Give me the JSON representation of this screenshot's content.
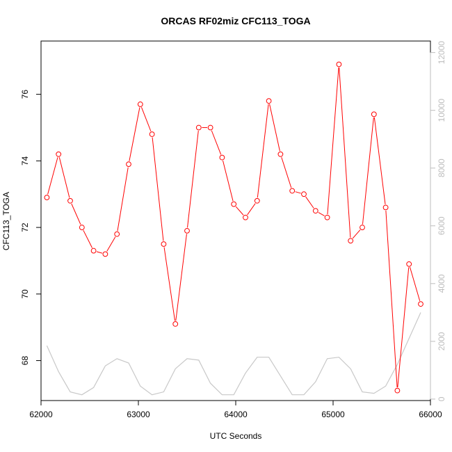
{
  "chart_data": {
    "type": "line",
    "title": "ORCAS RF02miz CFC113_TOGA",
    "xlabel": "UTC Seconds",
    "ylabel": "CFC113_TOGA",
    "xlim": [
      62000,
      66000
    ],
    "ylim": [
      66.8,
      77.6
    ],
    "y2lim": [
      -50,
      12400
    ],
    "x_ticks": [
      62000,
      63000,
      64000,
      65000,
      66000
    ],
    "y_ticks": [
      68,
      70,
      72,
      74,
      76
    ],
    "y2_ticks": [
      0,
      2000,
      4000,
      6000,
      8000,
      10000,
      12000
    ],
    "grid": false,
    "series": [
      {
        "axis": "left",
        "color": "#ff0000",
        "marker": "open-circle",
        "x": [
          62060,
          62180,
          62300,
          62420,
          62540,
          62660,
          62780,
          62900,
          63020,
          63140,
          63260,
          63380,
          63500,
          63620,
          63740,
          63860,
          63980,
          64100,
          64220,
          64340,
          64460,
          64580,
          64700,
          64820,
          64940,
          65060,
          65180,
          65300,
          65420,
          65540,
          65660,
          65780,
          65900
        ],
        "values": [
          72.9,
          74.2,
          72.8,
          72.0,
          71.3,
          71.2,
          71.8,
          73.9,
          75.7,
          74.8,
          71.5,
          69.1,
          71.9,
          75.0,
          75.0,
          74.1,
          72.7,
          72.3,
          72.8,
          75.8,
          74.2,
          73.1,
          73.0,
          72.5,
          72.3,
          76.9,
          71.6,
          72.0,
          75.4,
          72.6,
          67.1,
          70.9,
          69.7
        ]
      },
      {
        "axis": "right",
        "color": "#c8c8c8",
        "marker": "none",
        "x": [
          62060,
          62180,
          62300,
          62420,
          62540,
          62660,
          62780,
          62900,
          63020,
          63140,
          63260,
          63380,
          63500,
          63620,
          63740,
          63860,
          63980,
          64100,
          64220,
          64340,
          64460,
          64580,
          64700,
          64820,
          64940,
          65060,
          65180,
          65300,
          65420,
          65540,
          65660,
          65780,
          65900
        ],
        "values": [
          1850,
          950,
          250,
          150,
          400,
          1150,
          1400,
          1250,
          450,
          150,
          250,
          1050,
          1400,
          1350,
          550,
          150,
          150,
          900,
          1450,
          1450,
          800,
          150,
          150,
          600,
          1400,
          1450,
          1050,
          250,
          200,
          450,
          1200,
          2100,
          3000
        ]
      }
    ]
  }
}
